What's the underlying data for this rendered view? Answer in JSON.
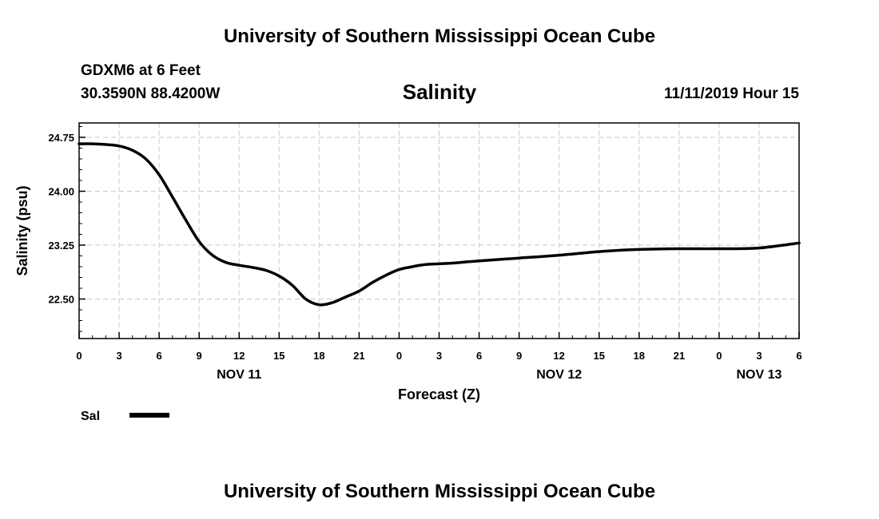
{
  "header": {
    "top_title": "University of Southern Mississippi Ocean Cube",
    "station": "GDXM6 at 6 Feet",
    "coords": "30.3590N 88.4200W",
    "datetime": "11/11/2019 Hour 15",
    "bottom_title": "University of Southern Mississippi Ocean Cube"
  },
  "chart_data": {
    "type": "line",
    "title": "Salinity",
    "xlabel": "Forecast (Z)",
    "ylabel": "Salinity (psu)",
    "ylim": [
      21.95,
      24.95
    ],
    "xlim": [
      0,
      54
    ],
    "y_ticks": [
      24.75,
      24.0,
      23.25,
      22.5
    ],
    "y_tick_labels": [
      "24.75",
      "24.00",
      "23.25",
      "22.50"
    ],
    "x_ticks": [
      0,
      3,
      6,
      9,
      12,
      15,
      18,
      21,
      24,
      27,
      30,
      33,
      36,
      39,
      42,
      45,
      48,
      51,
      54
    ],
    "x_tick_labels": [
      "0",
      "3",
      "6",
      "9",
      "12",
      "15",
      "18",
      "21",
      "0",
      "3",
      "6",
      "9",
      "12",
      "15",
      "18",
      "21",
      "0",
      "3",
      "6"
    ],
    "date_labels": [
      {
        "x": 12,
        "label": "NOV 11"
      },
      {
        "x": 36,
        "label": "NOV 12"
      },
      {
        "x": 51,
        "label": "NOV 13"
      }
    ],
    "grid": true,
    "legend": "bottom-left",
    "series": [
      {
        "name": "Sal",
        "color": "#000000",
        "x": [
          0,
          1,
          2,
          3,
          4,
          5,
          6,
          7,
          8,
          9,
          10,
          11,
          12,
          13,
          14,
          15,
          16,
          17,
          18,
          19,
          20,
          21,
          22,
          23,
          24,
          25,
          26,
          27,
          28,
          30,
          33,
          36,
          39,
          42,
          45,
          48,
          51,
          54
        ],
        "values": [
          24.66,
          24.66,
          24.65,
          24.63,
          24.57,
          24.45,
          24.23,
          23.92,
          23.6,
          23.3,
          23.11,
          23.01,
          22.97,
          22.94,
          22.9,
          22.82,
          22.69,
          22.5,
          22.42,
          22.45,
          22.53,
          22.61,
          22.73,
          22.83,
          22.91,
          22.95,
          22.98,
          22.99,
          23.0,
          23.03,
          23.07,
          23.11,
          23.16,
          23.19,
          23.2,
          23.2,
          23.21,
          23.28
        ]
      }
    ]
  }
}
